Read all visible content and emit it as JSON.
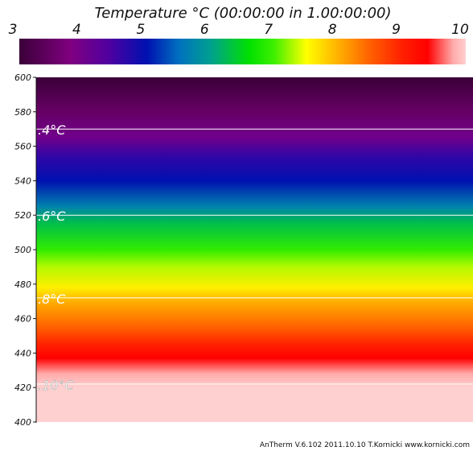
{
  "chart_data": {
    "type": "heatmap",
    "title": "Temperature °C (00:00:00 in 1.00:00:00)",
    "colorbar": {
      "ticks": [
        "3",
        "4",
        "5",
        "6",
        "7",
        "8",
        "9",
        "10"
      ],
      "range": [
        3,
        10
      ],
      "stops": [
        {
          "value": 3.0,
          "color": "#3a0038"
        },
        {
          "value": 3.8,
          "color": "#800080"
        },
        {
          "value": 4.4,
          "color": "#5000a0"
        },
        {
          "value": 5.0,
          "color": "#0010b0"
        },
        {
          "value": 5.5,
          "color": "#0070c0"
        },
        {
          "value": 6.0,
          "color": "#00a090"
        },
        {
          "value": 6.6,
          "color": "#00e000"
        },
        {
          "value": 7.0,
          "color": "#40f000"
        },
        {
          "value": 7.5,
          "color": "#ffff00"
        },
        {
          "value": 8.0,
          "color": "#ffb000"
        },
        {
          "value": 8.5,
          "color": "#ff6000"
        },
        {
          "value": 9.0,
          "color": "#ff2000"
        },
        {
          "value": 9.4,
          "color": "#ff0000"
        },
        {
          "value": 9.8,
          "color": "#ffaaaa"
        },
        {
          "value": 10.0,
          "color": "#ffd0d0"
        }
      ]
    },
    "y_axis": {
      "ticks": [
        600,
        580,
        560,
        540,
        520,
        500,
        480,
        460,
        440,
        420,
        400
      ],
      "range": [
        400,
        600
      ]
    },
    "profile": [
      {
        "y": 600,
        "t": 3.0
      },
      {
        "y": 580,
        "t": 3.5
      },
      {
        "y": 565,
        "t": 4.0
      },
      {
        "y": 555,
        "t": 4.6
      },
      {
        "y": 540,
        "t": 5.0
      },
      {
        "y": 525,
        "t": 5.7
      },
      {
        "y": 515,
        "t": 6.3
      },
      {
        "y": 500,
        "t": 6.9
      },
      {
        "y": 490,
        "t": 7.3
      },
      {
        "y": 478,
        "t": 7.6
      },
      {
        "y": 470,
        "t": 8.0
      },
      {
        "y": 455,
        "t": 8.5
      },
      {
        "y": 445,
        "t": 9.0
      },
      {
        "y": 437,
        "t": 9.4
      },
      {
        "y": 428,
        "t": 9.8
      },
      {
        "y": 420,
        "t": 10.0
      },
      {
        "y": 400,
        "t": 10.0
      }
    ],
    "isolines": [
      {
        "y": 570,
        "label": ".4°C"
      },
      {
        "y": 520,
        "label": ".6°C"
      },
      {
        "y": 472,
        "label": ".8°C"
      },
      {
        "y": 422,
        "label": ".10°C"
      }
    ]
  },
  "footer": "AnTherm V.6.102 2011.10.10  T.Kornicki www.kornicki.com"
}
